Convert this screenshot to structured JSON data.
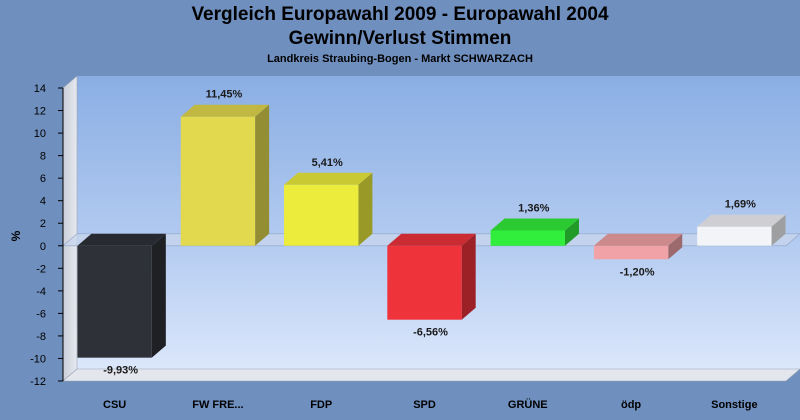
{
  "chart_data": {
    "type": "bar",
    "title_line1": "Vergleich Europawahl 2009 - Europawahl 2004",
    "title_line2": "Gewinn/Verlust Stimmen",
    "subtitle": "Landkreis Straubing-Bogen - Markt SCHWARZACH",
    "ylabel": "%",
    "xlabel": "",
    "ylim": [
      -12,
      14
    ],
    "yticks": [
      14,
      12,
      10,
      8,
      6,
      4,
      2,
      0,
      -2,
      -4,
      -6,
      -8,
      -10,
      -12
    ],
    "grid": false,
    "categories": [
      "CSU",
      "FW FRE...",
      "FDP",
      "SPD",
      "GRÜNE",
      "ödp",
      "Sonstige"
    ],
    "values": [
      -9.93,
      11.45,
      5.41,
      -6.56,
      1.36,
      -1.2,
      1.69
    ],
    "data_labels": [
      "-9,93%",
      "11,45%",
      "5,41%",
      "-6,56%",
      "1,36%",
      "-1,20%",
      "1,69%"
    ],
    "colors": [
      "#2e3138",
      "#e2d94e",
      "#ecec3c",
      "#ef333b",
      "#32ee3c",
      "#f0a2a6",
      "#f3f4f8"
    ],
    "background_color": "#6f8fbf"
  }
}
